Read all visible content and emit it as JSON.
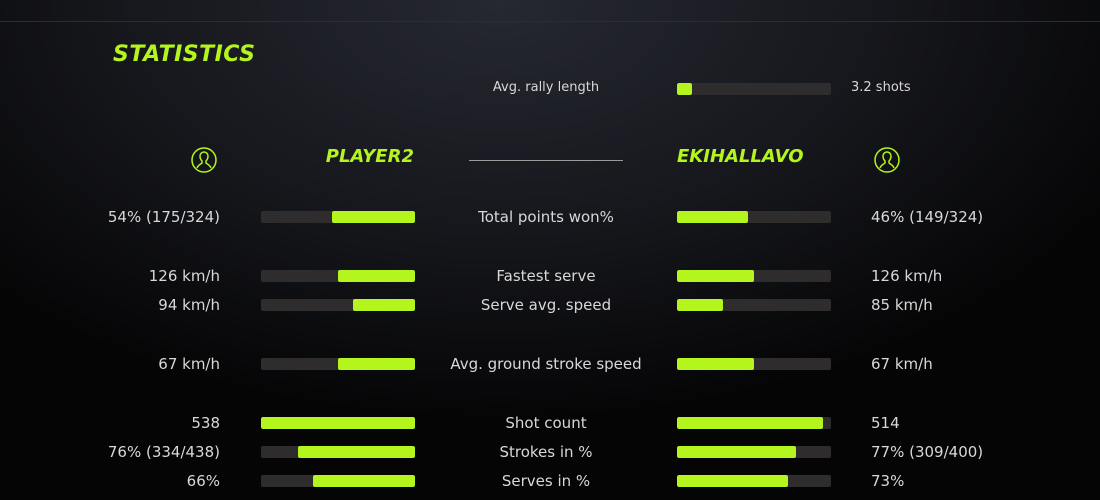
{
  "title": "STATISTICS",
  "accent": "#b4f51e",
  "rally": {
    "label": "Avg. rally length",
    "value": "3.2 shots",
    "fill": 0.1
  },
  "players": {
    "left": {
      "name": "PLAYER2",
      "icon": "user-circle-icon"
    },
    "right": {
      "name": "EKIHALLAVO",
      "icon": "user-circle-icon"
    }
  },
  "stats": [
    {
      "label": "Total points won%",
      "left": "54% (175/324)",
      "right": "46% (149/324)",
      "left_fill": 0.54,
      "right_fill": 0.46
    },
    {
      "label": "Fastest serve",
      "left": "126 km/h",
      "right": "126 km/h",
      "left_fill": 0.5,
      "right_fill": 0.5
    },
    {
      "label": "Serve avg. speed",
      "left": "94 km/h",
      "right": "85 km/h",
      "left_fill": 0.4,
      "right_fill": 0.3
    },
    {
      "label": "Avg. ground stroke speed",
      "left": "67 km/h",
      "right": "67 km/h",
      "left_fill": 0.5,
      "right_fill": 0.5
    },
    {
      "label": "Shot count",
      "left": "538",
      "right": "514",
      "left_fill": 1.0,
      "right_fill": 0.95
    },
    {
      "label": "Strokes in %",
      "left": "76% (334/438)",
      "right": "77% (309/400)",
      "left_fill": 0.76,
      "right_fill": 0.77
    },
    {
      "label": "Serves in %",
      "left": "66%",
      "right": "73%",
      "left_fill": 0.66,
      "right_fill": 0.72
    }
  ]
}
